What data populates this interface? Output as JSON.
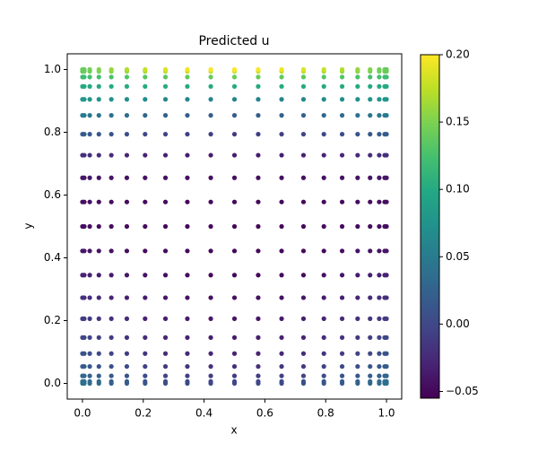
{
  "chart_data": {
    "type": "scatter",
    "title": "Predicted u",
    "x_label": "x",
    "y_label": "y",
    "colormap": "viridis",
    "x": [
      0,
      0.006,
      0.024,
      0.054,
      0.095,
      0.146,
      0.206,
      0.273,
      0.345,
      0.422,
      0.5,
      0.578,
      0.655,
      0.727,
      0.794,
      0.854,
      0.905,
      0.946,
      0.976,
      0.994,
      1
    ],
    "y": [
      0,
      0.006,
      0.024,
      0.054,
      0.095,
      0.146,
      0.206,
      0.273,
      0.345,
      0.422,
      0.5,
      0.578,
      0.655,
      0.727,
      0.794,
      0.854,
      0.905,
      0.946,
      0.976,
      0.994,
      1
    ],
    "values": [
      [
        0.04,
        0.039,
        0.036,
        0.032,
        0.026,
        0.02,
        0.014,
        0.008,
        0.004,
        0.001,
        0,
        0.001,
        0.004,
        0.008,
        0.014,
        0.02,
        0.026,
        0.032,
        0.036,
        0.039,
        0.04
      ],
      [
        0.038,
        0.037,
        0.034,
        0.03,
        0.024,
        0.018,
        0.012,
        0.006,
        0.002,
        -0.001,
        -0.002,
        -0.001,
        0.002,
        0.006,
        0.012,
        0.018,
        0.024,
        0.03,
        0.034,
        0.037,
        0.038
      ],
      [
        0.03,
        0.029,
        0.026,
        0.022,
        0.016,
        0.01,
        0.004,
        -0.002,
        -0.006,
        -0.009,
        -0.01,
        -0.009,
        -0.006,
        -0.002,
        0.004,
        0.01,
        0.016,
        0.022,
        0.026,
        0.029,
        0.03
      ],
      [
        0.02,
        0.019,
        0.016,
        0.012,
        0.006,
        0,
        -0.006,
        -0.012,
        -0.016,
        -0.019,
        -0.02,
        -0.019,
        -0.016,
        -0.012,
        -0.006,
        0,
        0.006,
        0.012,
        0.016,
        0.019,
        0.02
      ],
      [
        0.01,
        0.009,
        0.006,
        0.002,
        -0.004,
        -0.01,
        -0.016,
        -0.022,
        -0.026,
        -0.029,
        -0.03,
        -0.029,
        -0.026,
        -0.022,
        -0.016,
        -0.01,
        -0.004,
        0.002,
        0.006,
        0.009,
        0.01
      ],
      [
        0,
        -0.001,
        -0.003,
        -0.007,
        -0.012,
        -0.018,
        -0.023,
        -0.028,
        -0.032,
        -0.034,
        -0.035,
        -0.034,
        -0.032,
        -0.028,
        -0.023,
        -0.018,
        -0.012,
        -0.007,
        -0.003,
        -0.001,
        0
      ],
      [
        -0.01,
        -0.011,
        -0.013,
        -0.016,
        -0.02,
        -0.025,
        -0.03,
        -0.034,
        -0.037,
        -0.039,
        -0.04,
        -0.039,
        -0.037,
        -0.034,
        -0.03,
        -0.025,
        -0.02,
        -0.016,
        -0.013,
        -0.011,
        -0.01
      ],
      [
        -0.02,
        -0.021,
        -0.022,
        -0.025,
        -0.029,
        -0.033,
        -0.036,
        -0.04,
        -0.043,
        -0.045,
        -0.045,
        -0.045,
        -0.043,
        -0.04,
        -0.036,
        -0.033,
        -0.029,
        -0.025,
        -0.022,
        -0.021,
        -0.02
      ],
      [
        -0.03,
        -0.03,
        -0.032,
        -0.034,
        -0.037,
        -0.04,
        -0.043,
        -0.046,
        -0.048,
        -0.05,
        -0.05,
        -0.05,
        -0.048,
        -0.046,
        -0.043,
        -0.04,
        -0.037,
        -0.034,
        -0.032,
        -0.03,
        -0.03
      ],
      [
        -0.04,
        -0.04,
        -0.041,
        -0.042,
        -0.043,
        -0.045,
        -0.047,
        -0.048,
        -0.049,
        -0.05,
        -0.05,
        -0.05,
        -0.049,
        -0.048,
        -0.047,
        -0.045,
        -0.043,
        -0.042,
        -0.041,
        -0.04,
        -0.04
      ],
      [
        -0.045,
        -0.045,
        -0.045,
        -0.046,
        -0.047,
        -0.048,
        -0.048,
        -0.049,
        -0.05,
        -0.05,
        -0.05,
        -0.05,
        -0.05,
        -0.049,
        -0.048,
        -0.048,
        -0.047,
        -0.046,
        -0.045,
        -0.045,
        -0.045
      ],
      [
        -0.045,
        -0.045,
        -0.045,
        -0.046,
        -0.047,
        -0.048,
        -0.048,
        -0.049,
        -0.05,
        -0.05,
        -0.05,
        -0.05,
        -0.05,
        -0.049,
        -0.048,
        -0.048,
        -0.047,
        -0.046,
        -0.045,
        -0.045,
        -0.045
      ],
      [
        -0.04,
        -0.04,
        -0.04,
        -0.041,
        -0.042,
        -0.043,
        -0.043,
        -0.044,
        -0.045,
        -0.045,
        -0.045,
        -0.045,
        -0.045,
        -0.044,
        -0.043,
        -0.043,
        -0.042,
        -0.041,
        -0.04,
        -0.04,
        -0.04
      ],
      [
        -0.02,
        -0.02,
        -0.021,
        -0.023,
        -0.025,
        -0.028,
        -0.03,
        -0.032,
        -0.034,
        -0.035,
        -0.035,
        -0.035,
        -0.034,
        -0.032,
        -0.03,
        -0.028,
        -0.025,
        -0.023,
        -0.021,
        -0.02,
        -0.02
      ],
      [
        0.02,
        0.019,
        0.017,
        0.014,
        0.01,
        0.005,
        0,
        -0.004,
        -0.007,
        -0.009,
        -0.01,
        -0.009,
        -0.007,
        -0.004,
        0,
        0.005,
        0.01,
        0.014,
        0.017,
        0.019,
        0.02
      ],
      [
        0.05,
        0.049,
        0.047,
        0.044,
        0.04,
        0.035,
        0.03,
        0.026,
        0.023,
        0.021,
        0.02,
        0.021,
        0.023,
        0.026,
        0.03,
        0.035,
        0.04,
        0.044,
        0.047,
        0.049,
        0.05
      ],
      [
        0.08,
        0.08,
        0.078,
        0.076,
        0.073,
        0.07,
        0.067,
        0.064,
        0.062,
        0.06,
        0.06,
        0.06,
        0.062,
        0.064,
        0.067,
        0.07,
        0.073,
        0.076,
        0.078,
        0.08,
        0.08
      ],
      [
        0.1,
        0.1,
        0.1,
        0.1,
        0.1,
        0.1,
        0.1,
        0.1,
        0.1,
        0.1,
        0.1,
        0.1,
        0.1,
        0.1,
        0.1,
        0.1,
        0.1,
        0.1,
        0.1,
        0.1,
        0.1
      ],
      [
        0.12,
        0.12,
        0.122,
        0.124,
        0.127,
        0.13,
        0.133,
        0.136,
        0.138,
        0.14,
        0.14,
        0.14,
        0.138,
        0.136,
        0.133,
        0.13,
        0.127,
        0.124,
        0.122,
        0.12,
        0.12
      ],
      [
        0.14,
        0.141,
        0.144,
        0.148,
        0.154,
        0.16,
        0.166,
        0.172,
        0.176,
        0.179,
        0.18,
        0.179,
        0.176,
        0.172,
        0.166,
        0.16,
        0.154,
        0.148,
        0.144,
        0.141,
        0.14
      ],
      [
        0.14,
        0.141,
        0.145,
        0.152,
        0.16,
        0.17,
        0.179,
        0.187,
        0.194,
        0.199,
        0.2,
        0.199,
        0.194,
        0.187,
        0.179,
        0.17,
        0.16,
        0.152,
        0.145,
        0.141,
        0.14
      ]
    ],
    "xlim": [
      -0.05,
      1.05
    ],
    "ylim": [
      -0.05,
      1.05
    ],
    "xticks": [
      {
        "value": 0,
        "label": "0.0"
      },
      {
        "value": 0.2,
        "label": "0.2"
      },
      {
        "value": 0.4,
        "label": "0.4"
      },
      {
        "value": 0.6,
        "label": "0.6"
      },
      {
        "value": 0.8,
        "label": "0.8"
      },
      {
        "value": 1,
        "label": "1.0"
      }
    ],
    "yticks": [
      {
        "value": 0,
        "label": "0.0"
      },
      {
        "value": 0.2,
        "label": "0.2"
      },
      {
        "value": 0.4,
        "label": "0.4"
      },
      {
        "value": 0.6,
        "label": "0.6"
      },
      {
        "value": 0.8,
        "label": "0.8"
      },
      {
        "value": 1,
        "label": "1.0"
      }
    ],
    "clim": [
      -0.055,
      0.2
    ],
    "cticks": [
      {
        "value": -0.05,
        "label": "−0.05"
      },
      {
        "value": 0,
        "label": "0.00"
      },
      {
        "value": 0.05,
        "label": "0.05"
      },
      {
        "value": 0.1,
        "label": "0.10"
      },
      {
        "value": 0.15,
        "label": "0.15"
      },
      {
        "value": 0.2,
        "label": "0.20"
      }
    ]
  }
}
